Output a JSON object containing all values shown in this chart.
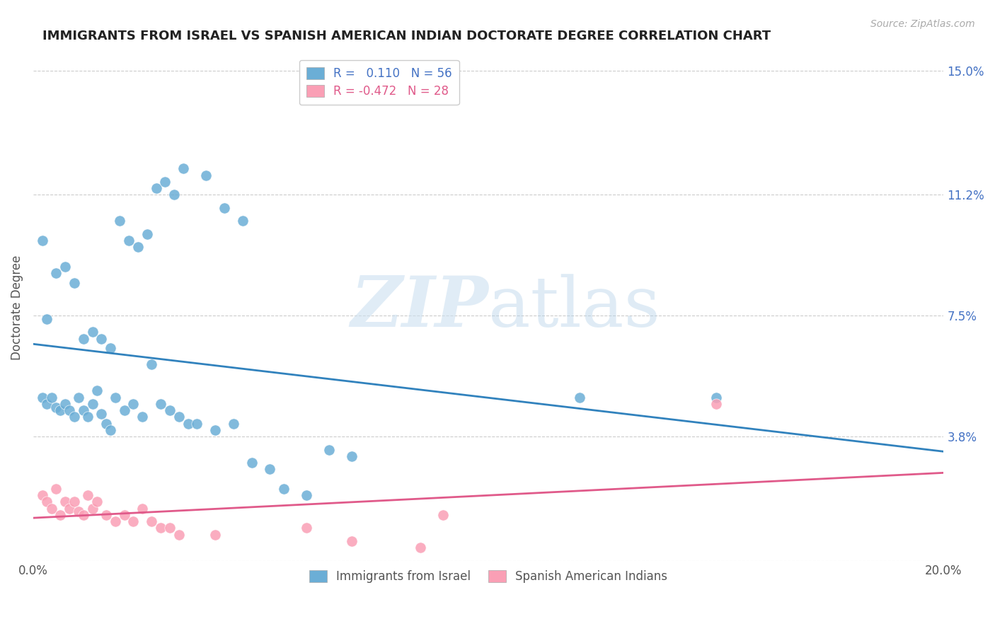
{
  "title": "IMMIGRANTS FROM ISRAEL VS SPANISH AMERICAN INDIAN DOCTORATE DEGREE CORRELATION CHART",
  "source": "Source: ZipAtlas.com",
  "ylabel": "Doctorate Degree",
  "x_ticks": [
    0.0,
    0.05,
    0.1,
    0.15,
    0.2
  ],
  "x_tick_labels": [
    "0.0%",
    "",
    "",
    "",
    "20.0%"
  ],
  "y_tick_labels_right": [
    "",
    "3.8%",
    "7.5%",
    "11.2%",
    "15.0%"
  ],
  "y_ticks_right": [
    0.0,
    0.038,
    0.075,
    0.112,
    0.15
  ],
  "xlim": [
    0.0,
    0.2
  ],
  "ylim": [
    0.0,
    0.155
  ],
  "watermark_zip": "ZIP",
  "watermark_atlas": "atlas",
  "blue_color": "#6baed6",
  "pink_color": "#fa9fb5",
  "line_blue": "#3182bd",
  "line_pink": "#e05a8a",
  "israel_scatter_x": [
    0.002,
    0.003,
    0.004,
    0.005,
    0.006,
    0.007,
    0.008,
    0.009,
    0.01,
    0.011,
    0.012,
    0.013,
    0.014,
    0.015,
    0.016,
    0.017,
    0.018,
    0.02,
    0.022,
    0.024,
    0.026,
    0.028,
    0.03,
    0.032,
    0.034,
    0.036,
    0.04,
    0.044,
    0.048,
    0.052,
    0.002,
    0.003,
    0.005,
    0.007,
    0.009,
    0.011,
    0.013,
    0.015,
    0.017,
    0.019,
    0.021,
    0.023,
    0.025,
    0.027,
    0.029,
    0.031,
    0.033,
    0.038,
    0.042,
    0.046,
    0.055,
    0.06,
    0.065,
    0.07,
    0.12,
    0.15
  ],
  "israel_scatter_y": [
    0.05,
    0.048,
    0.05,
    0.047,
    0.046,
    0.048,
    0.046,
    0.044,
    0.05,
    0.046,
    0.044,
    0.048,
    0.052,
    0.045,
    0.042,
    0.04,
    0.05,
    0.046,
    0.048,
    0.044,
    0.06,
    0.048,
    0.046,
    0.044,
    0.042,
    0.042,
    0.04,
    0.042,
    0.03,
    0.028,
    0.098,
    0.074,
    0.088,
    0.09,
    0.085,
    0.068,
    0.07,
    0.068,
    0.065,
    0.104,
    0.098,
    0.096,
    0.1,
    0.114,
    0.116,
    0.112,
    0.12,
    0.118,
    0.108,
    0.104,
    0.022,
    0.02,
    0.034,
    0.032,
    0.05,
    0.05
  ],
  "spanish_scatter_x": [
    0.002,
    0.003,
    0.004,
    0.005,
    0.006,
    0.007,
    0.008,
    0.009,
    0.01,
    0.011,
    0.012,
    0.013,
    0.014,
    0.016,
    0.018,
    0.02,
    0.022,
    0.024,
    0.026,
    0.028,
    0.03,
    0.032,
    0.04,
    0.06,
    0.07,
    0.085,
    0.09,
    0.15
  ],
  "spanish_scatter_y": [
    0.02,
    0.018,
    0.016,
    0.022,
    0.014,
    0.018,
    0.016,
    0.018,
    0.015,
    0.014,
    0.02,
    0.016,
    0.018,
    0.014,
    0.012,
    0.014,
    0.012,
    0.016,
    0.012,
    0.01,
    0.01,
    0.008,
    0.008,
    0.01,
    0.006,
    0.004,
    0.014,
    0.048
  ]
}
